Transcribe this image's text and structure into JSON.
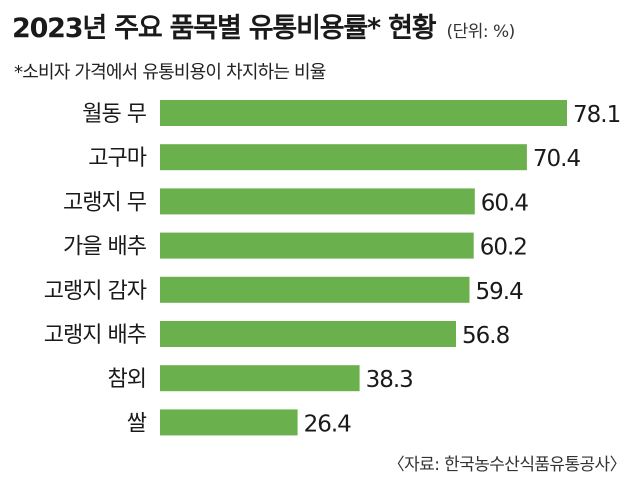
{
  "chart_data": {
    "type": "bar",
    "orientation": "horizontal",
    "title": "2023년 주요 품목별 유통비용률* 현황",
    "unit_label": "(단위: %)",
    "subtitle": "*소비자 가격에서 유통비용이 차지하는 비율",
    "categories": [
      "월동 무",
      "고구마",
      "고랭지 무",
      "가을 배추",
      "고랭지 감자",
      "고랭지 배추",
      "참외",
      "쌀"
    ],
    "values": [
      78.1,
      70.4,
      60.4,
      60.2,
      59.4,
      56.8,
      38.3,
      26.4
    ],
    "value_labels": [
      "78.1",
      "70.4",
      "60.4",
      "60.2",
      "59.4",
      "56.8",
      "38.3",
      "26.4"
    ],
    "xlim": [
      0,
      78.1
    ],
    "grid": false,
    "legend": "none",
    "bar_color": "#6ab04c",
    "source": "〈자료: 한국농수산식품유통공사〉"
  }
}
